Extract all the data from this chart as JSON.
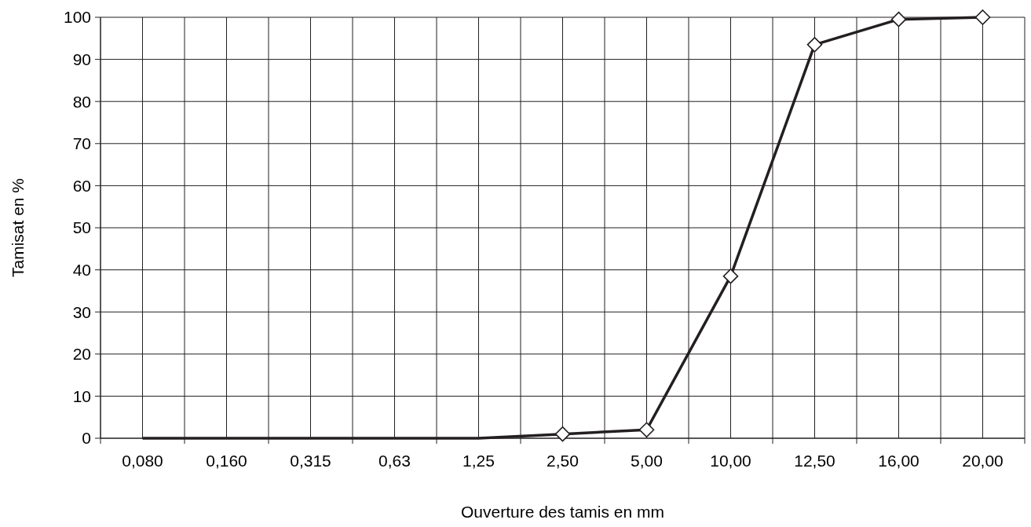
{
  "chart_data": {
    "type": "line",
    "xlabel": "Ouverture des tamis en mm",
    "ylabel": "Tamisat en %",
    "categories": [
      "0,080",
      "0,160",
      "0,315",
      "0,63",
      "1,25",
      "2,50",
      "5,00",
      "10,00",
      "12,50",
      "16,00",
      "20,00"
    ],
    "series": [
      {
        "color": "#231f20",
        "marker": "none",
        "values": [
          0,
          0,
          0,
          0,
          0,
          1,
          null,
          null,
          null,
          null,
          null
        ]
      },
      {
        "color": "#231f20",
        "marker": "diamond",
        "values": [
          null,
          null,
          null,
          null,
          null,
          1,
          2,
          38.5,
          93.5,
          99.5,
          100
        ]
      }
    ],
    "ylim": [
      0,
      100
    ],
    "yticks": [
      0,
      10,
      20,
      30,
      40,
      50,
      60,
      70,
      80,
      90,
      100
    ],
    "grid": true,
    "line_style": "solid"
  }
}
